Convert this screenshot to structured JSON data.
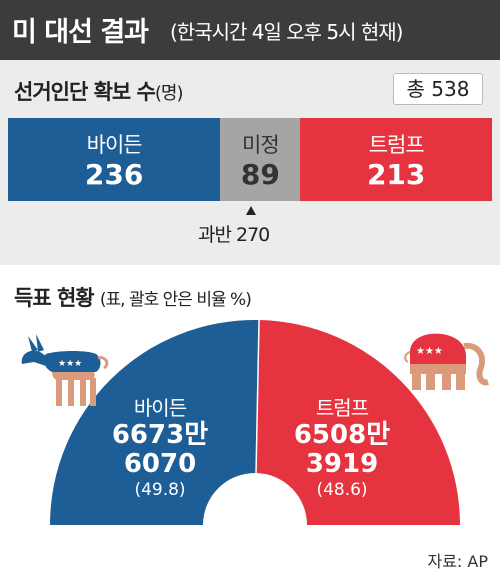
{
  "header": {
    "title": "미 대선 결과",
    "subtitle": "(한국시간 4일 오후 5시 현재)"
  },
  "electoral": {
    "title": "선거인단 확보 수",
    "unit": "(명)",
    "total_label": "총 538",
    "majority_label": "과반 270"
  },
  "popular": {
    "title": "득표 현황",
    "subtitle": "(표, 괄호 안은 비율 %)"
  },
  "source": "자료: AP",
  "colors": {
    "democrat": "#1e5e96",
    "republican": "#e5343f",
    "undecided": "#a5a5a5"
  },
  "icons": {
    "left": "donkey-icon",
    "right": "elephant-icon"
  },
  "chart_data": [
    {
      "type": "bar",
      "stacked": true,
      "orientation": "horizontal",
      "total": 538,
      "majority": 270,
      "series": [
        {
          "name": "바이든",
          "value": 236,
          "value_label": "236"
        },
        {
          "name": "미정",
          "value": 89,
          "value_label": "89"
        },
        {
          "name": "트럼프",
          "value": 213,
          "value_label": "213"
        }
      ]
    },
    {
      "type": "pie",
      "shape": "semicircle",
      "series": [
        {
          "name": "바이든",
          "votes_label_1": "6673만",
          "votes_label_2": "6070",
          "votes": 66736070,
          "percent": 49.8,
          "percent_label": "(49.8)"
        },
        {
          "name": "트럼프",
          "votes_label_1": "6508만",
          "votes_label_2": "3919",
          "votes": 65083919,
          "percent": 48.6,
          "percent_label": "(48.6)"
        }
      ]
    }
  ]
}
